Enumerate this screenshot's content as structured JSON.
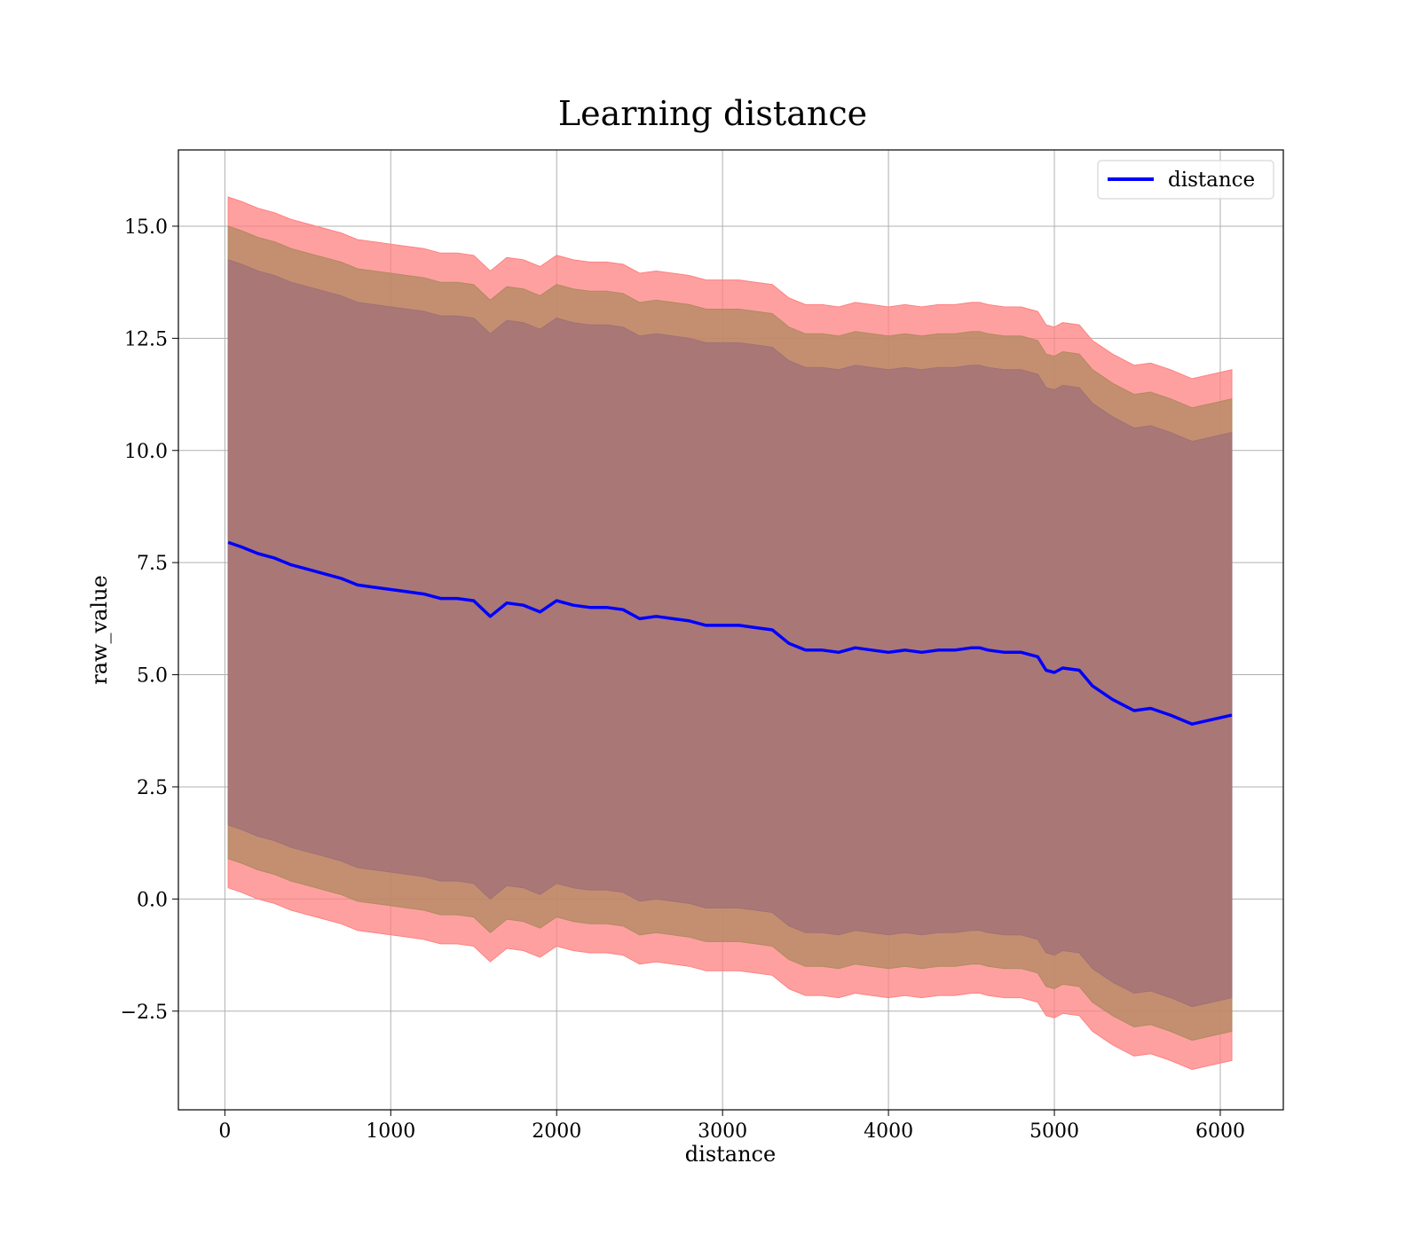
{
  "chart_data": {
    "type": "line",
    "title": "Learning distance",
    "xlabel": "distance",
    "ylabel": "raw_value",
    "xlim": [
      -280,
      6380
    ],
    "ylim": [
      -4.7,
      16.7
    ],
    "xticks": [
      0,
      1000,
      2000,
      3000,
      4000,
      5000,
      6000
    ],
    "xtick_labels": [
      "0",
      "1000",
      "2000",
      "3000",
      "4000",
      "5000",
      "6000"
    ],
    "yticks": [
      -2.5,
      0.0,
      2.5,
      5.0,
      7.5,
      10.0,
      12.5,
      15.0
    ],
    "ytick_labels": [
      "−2.5",
      "0.0",
      "2.5",
      "5.0",
      "7.5",
      "10.0",
      "12.5",
      "15.0"
    ],
    "grid": true,
    "legend_position": "top-right",
    "legend": [
      "distance"
    ],
    "colors": {
      "line": "#0000ff",
      "band_outer": "#ff8080",
      "band_middle": "#b08a60",
      "band_inner": "#a07078"
    },
    "bands": {
      "half_widths": [
        7.7,
        7.05,
        6.3
      ]
    },
    "series": [
      {
        "name": "distance",
        "x": [
          20,
          100,
          200,
          300,
          400,
          500,
          600,
          700,
          800,
          900,
          1000,
          1100,
          1200,
          1300,
          1400,
          1500,
          1600,
          1700,
          1800,
          1900,
          2000,
          2100,
          2200,
          2300,
          2400,
          2500,
          2600,
          2700,
          2800,
          2900,
          3000,
          3100,
          3200,
          3300,
          3400,
          3500,
          3600,
          3700,
          3800,
          3900,
          4000,
          4100,
          4200,
          4300,
          4400,
          4500,
          4550,
          4600,
          4700,
          4800,
          4900,
          4950,
          5000,
          5050,
          5150,
          5230,
          5350,
          5480,
          5580,
          5700,
          5830,
          6070
        ],
        "y": [
          7.95,
          7.85,
          7.7,
          7.6,
          7.45,
          7.35,
          7.25,
          7.15,
          7.0,
          6.95,
          6.9,
          6.85,
          6.8,
          6.7,
          6.7,
          6.65,
          6.3,
          6.6,
          6.55,
          6.4,
          6.65,
          6.55,
          6.5,
          6.5,
          6.45,
          6.25,
          6.3,
          6.25,
          6.2,
          6.1,
          6.1,
          6.1,
          6.05,
          6.0,
          5.7,
          5.55,
          5.55,
          5.5,
          5.6,
          5.55,
          5.5,
          5.55,
          5.5,
          5.55,
          5.55,
          5.6,
          5.6,
          5.55,
          5.5,
          5.5,
          5.4,
          5.1,
          5.05,
          5.15,
          5.1,
          4.75,
          4.45,
          4.2,
          4.25,
          4.1,
          3.9,
          4.1
        ]
      }
    ]
  }
}
